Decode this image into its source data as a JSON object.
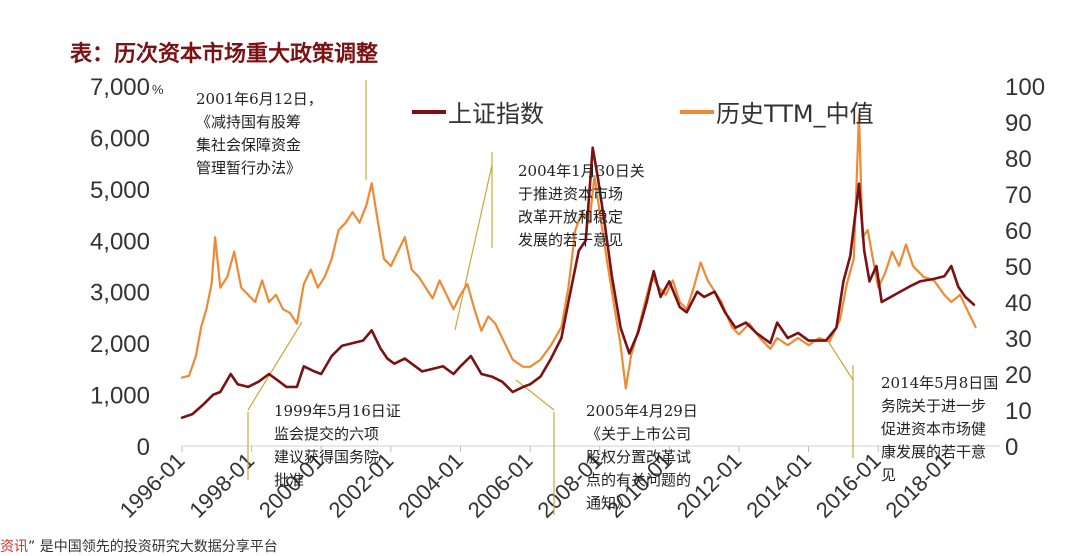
{
  "title": "表：历次资本市场重大政策调整",
  "footer": {
    "prefix": "资讯",
    "text": "” 是中国领先的投资研究大数据分享平台"
  },
  "chart_data": {
    "type": "line",
    "x_ticks": [
      "1996-01",
      "1998-01",
      "2000-01",
      "2002-01",
      "2004-01",
      "2006-01",
      "2008-01",
      "2010-01",
      "2012-01",
      "2014-01",
      "2016-01",
      "2018-01"
    ],
    "y_left": {
      "ticks": [
        "7,000",
        "6,000",
        "5,000",
        "4,000",
        "3,000",
        "2,000",
        "1,000",
        "0"
      ],
      "unit": "%",
      "range": [
        0,
        7000
      ]
    },
    "y_right": {
      "ticks": [
        "100",
        "90",
        "80",
        "70",
        "60",
        "50",
        "40",
        "30",
        "20",
        "10",
        "0"
      ],
      "range": [
        0,
        100
      ]
    },
    "x_range": [
      1996.0,
      2019.5
    ],
    "legend": {
      "position": "top",
      "items": [
        {
          "name": "上证指数",
          "color": "#7b1113"
        },
        {
          "name": "历史TTM_中值",
          "color": "#ee8a36"
        }
      ]
    },
    "series": [
      {
        "name": "上证指数",
        "axis": "left",
        "color": "#7b1113",
        "points": [
          [
            1996.0,
            550
          ],
          [
            1996.3,
            620
          ],
          [
            1996.6,
            800
          ],
          [
            1996.9,
            1000
          ],
          [
            1997.1,
            1050
          ],
          [
            1997.4,
            1400
          ],
          [
            1997.6,
            1200
          ],
          [
            1997.9,
            1150
          ],
          [
            1998.2,
            1250
          ],
          [
            1998.5,
            1400
          ],
          [
            1998.8,
            1250
          ],
          [
            1999.0,
            1150
          ],
          [
            1999.3,
            1150
          ],
          [
            1999.5,
            1550
          ],
          [
            1999.8,
            1450
          ],
          [
            2000.0,
            1400
          ],
          [
            2000.3,
            1750
          ],
          [
            2000.6,
            1950
          ],
          [
            2000.9,
            2000
          ],
          [
            2001.2,
            2050
          ],
          [
            2001.45,
            2250
          ],
          [
            2001.7,
            1900
          ],
          [
            2001.9,
            1700
          ],
          [
            2002.1,
            1600
          ],
          [
            2002.4,
            1700
          ],
          [
            2002.6,
            1600
          ],
          [
            2002.9,
            1450
          ],
          [
            2003.2,
            1500
          ],
          [
            2003.5,
            1550
          ],
          [
            2003.8,
            1400
          ],
          [
            2004.0,
            1550
          ],
          [
            2004.3,
            1750
          ],
          [
            2004.6,
            1400
          ],
          [
            2004.9,
            1350
          ],
          [
            2005.2,
            1250
          ],
          [
            2005.5,
            1050
          ],
          [
            2005.8,
            1150
          ],
          [
            2006.0,
            1200
          ],
          [
            2006.3,
            1350
          ],
          [
            2006.6,
            1700
          ],
          [
            2006.9,
            2100
          ],
          [
            2007.1,
            2800
          ],
          [
            2007.4,
            3800
          ],
          [
            2007.6,
            4000
          ],
          [
            2007.8,
            5800
          ],
          [
            2007.95,
            5200
          ],
          [
            2008.15,
            4300
          ],
          [
            2008.35,
            3300
          ],
          [
            2008.6,
            2300
          ],
          [
            2008.85,
            1800
          ],
          [
            2009.1,
            2200
          ],
          [
            2009.35,
            2800
          ],
          [
            2009.55,
            3400
          ],
          [
            2009.75,
            2900
          ],
          [
            2010.0,
            3200
          ],
          [
            2010.3,
            2700
          ],
          [
            2010.5,
            2600
          ],
          [
            2010.8,
            3000
          ],
          [
            2011.0,
            2900
          ],
          [
            2011.3,
            3000
          ],
          [
            2011.6,
            2600
          ],
          [
            2011.9,
            2300
          ],
          [
            2012.2,
            2400
          ],
          [
            2012.5,
            2200
          ],
          [
            2012.9,
            2000
          ],
          [
            2013.1,
            2400
          ],
          [
            2013.4,
            2100
          ],
          [
            2013.7,
            2200
          ],
          [
            2014.0,
            2050
          ],
          [
            2014.3,
            2050
          ],
          [
            2014.5,
            2050
          ],
          [
            2014.8,
            2300
          ],
          [
            2015.0,
            3200
          ],
          [
            2015.2,
            3700
          ],
          [
            2015.45,
            5100
          ],
          [
            2015.6,
            3800
          ],
          [
            2015.75,
            3200
          ],
          [
            2015.95,
            3500
          ],
          [
            2016.1,
            2800
          ],
          [
            2016.5,
            2950
          ],
          [
            2016.9,
            3100
          ],
          [
            2017.2,
            3200
          ],
          [
            2017.6,
            3250
          ],
          [
            2017.9,
            3300
          ],
          [
            2018.1,
            3500
          ],
          [
            2018.3,
            3100
          ],
          [
            2018.5,
            2900
          ],
          [
            2018.75,
            2750
          ]
        ]
      },
      {
        "name": "历史TTM_中值",
        "axis": "right",
        "color": "#ee8a36",
        "points": [
          [
            1996.0,
            19
          ],
          [
            1996.2,
            19.5
          ],
          [
            1996.4,
            25
          ],
          [
            1996.55,
            33
          ],
          [
            1996.7,
            38
          ],
          [
            1996.85,
            45
          ],
          [
            1996.95,
            58
          ],
          [
            1997.1,
            44
          ],
          [
            1997.3,
            47
          ],
          [
            1997.5,
            54
          ],
          [
            1997.7,
            44
          ],
          [
            1997.9,
            42
          ],
          [
            1998.1,
            40
          ],
          [
            1998.3,
            46
          ],
          [
            1998.5,
            40
          ],
          [
            1998.7,
            42
          ],
          [
            1998.9,
            38
          ],
          [
            1999.1,
            37
          ],
          [
            1999.3,
            34
          ],
          [
            1999.5,
            45
          ],
          [
            1999.7,
            49
          ],
          [
            1999.9,
            44
          ],
          [
            2000.1,
            47
          ],
          [
            2000.3,
            52
          ],
          [
            2000.5,
            60
          ],
          [
            2000.7,
            62
          ],
          [
            2000.9,
            65
          ],
          [
            2001.1,
            62
          ],
          [
            2001.3,
            67
          ],
          [
            2001.45,
            73
          ],
          [
            2001.6,
            64
          ],
          [
            2001.8,
            52
          ],
          [
            2002.0,
            50
          ],
          [
            2002.2,
            54
          ],
          [
            2002.4,
            58
          ],
          [
            2002.6,
            49
          ],
          [
            2002.8,
            47
          ],
          [
            2003.0,
            44
          ],
          [
            2003.2,
            41
          ],
          [
            2003.4,
            46
          ],
          [
            2003.6,
            42
          ],
          [
            2003.8,
            38
          ],
          [
            2004.0,
            42
          ],
          [
            2004.2,
            45
          ],
          [
            2004.4,
            38
          ],
          [
            2004.6,
            32
          ],
          [
            2004.8,
            36
          ],
          [
            2005.0,
            34
          ],
          [
            2005.2,
            30
          ],
          [
            2005.5,
            24
          ],
          [
            2005.8,
            22
          ],
          [
            2006.0,
            22
          ],
          [
            2006.3,
            24
          ],
          [
            2006.6,
            28
          ],
          [
            2006.9,
            33
          ],
          [
            2007.1,
            44
          ],
          [
            2007.3,
            60
          ],
          [
            2007.5,
            65
          ],
          [
            2007.7,
            62
          ],
          [
            2007.85,
            75
          ],
          [
            2008.0,
            65
          ],
          [
            2008.2,
            52
          ],
          [
            2008.4,
            40
          ],
          [
            2008.6,
            28
          ],
          [
            2008.75,
            16
          ],
          [
            2008.9,
            25
          ],
          [
            2009.1,
            32
          ],
          [
            2009.3,
            40
          ],
          [
            2009.5,
            47
          ],
          [
            2009.7,
            44
          ],
          [
            2009.9,
            42
          ],
          [
            2010.1,
            46
          ],
          [
            2010.3,
            40
          ],
          [
            2010.5,
            38
          ],
          [
            2010.7,
            44
          ],
          [
            2010.9,
            51
          ],
          [
            2011.1,
            46
          ],
          [
            2011.3,
            43
          ],
          [
            2011.5,
            40
          ],
          [
            2011.8,
            33
          ],
          [
            2012.0,
            31
          ],
          [
            2012.3,
            34
          ],
          [
            2012.6,
            30
          ],
          [
            2012.9,
            27
          ],
          [
            2013.1,
            30
          ],
          [
            2013.4,
            28
          ],
          [
            2013.7,
            30
          ],
          [
            2014.0,
            28
          ],
          [
            2014.3,
            30
          ],
          [
            2014.6,
            29
          ],
          [
            2014.9,
            35
          ],
          [
            2015.1,
            45
          ],
          [
            2015.3,
            52
          ],
          [
            2015.45,
            92
          ],
          [
            2015.55,
            58
          ],
          [
            2015.7,
            60
          ],
          [
            2015.85,
            52
          ],
          [
            2016.0,
            44
          ],
          [
            2016.2,
            48
          ],
          [
            2016.4,
            54
          ],
          [
            2016.6,
            50
          ],
          [
            2016.8,
            56
          ],
          [
            2017.0,
            50
          ],
          [
            2017.3,
            47
          ],
          [
            2017.6,
            46
          ],
          [
            2017.9,
            42
          ],
          [
            2018.1,
            40
          ],
          [
            2018.35,
            42
          ],
          [
            2018.55,
            38
          ],
          [
            2018.8,
            33
          ]
        ]
      }
    ],
    "annotations": [
      {
        "text": [
          "2001年6月12日，",
          "《减持国有股筹",
          "集社会保障资金",
          "管理暂行办法》"
        ]
      },
      {
        "text": [
          "2004年1月30日关",
          "于推进资本市场",
          "改革开放和稳定",
          "发展的若干意见"
        ]
      },
      {
        "text": [
          "1999年5月16日证",
          "监会提交的六项",
          "建议获得国务院",
          "批准"
        ]
      },
      {
        "text": [
          "2005年4月29日",
          "《关于上市公司",
          "股权分置改革试",
          "点的有关问题的",
          "通知》"
        ]
      },
      {
        "text": [
          "2014年5月8日国",
          "务院关于进一步",
          "促进资本市场健",
          "康发展的若干意",
          "见"
        ]
      }
    ]
  }
}
